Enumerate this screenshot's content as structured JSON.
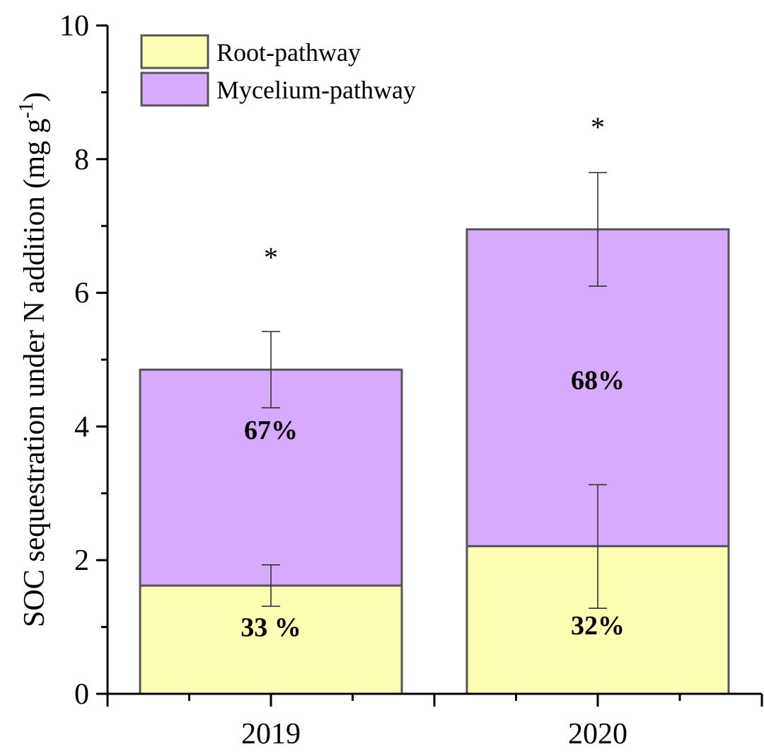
{
  "chart_data": {
    "type": "bar",
    "stacked": true,
    "title": "",
    "xlabel": "",
    "ylabel": {
      "main": "SOC sequestration under N addition (mg g",
      "sup": "-1",
      "close": ")"
    },
    "ylim": [
      0,
      10
    ],
    "yticks": [
      0,
      2,
      4,
      6,
      8,
      10
    ],
    "yticks_minor": [
      1,
      3,
      5,
      7,
      9
    ],
    "categories": [
      "2019",
      "2020"
    ],
    "series": [
      {
        "name": "Root-pathway",
        "color": "#FCFEB1",
        "values": [
          1.62,
          2.21
        ],
        "error_low": [
          1.31,
          1.28
        ],
        "error_high": [
          1.93,
          3.13
        ],
        "labels": [
          "33 %",
          "32%"
        ],
        "label_values": [
          1.0,
          1.03
        ]
      },
      {
        "name": "Mycelium-pathway",
        "color": "#D6AAFC",
        "values": [
          3.23,
          4.74
        ],
        "error_low": [
          4.28,
          6.1
        ],
        "error_high": [
          5.42,
          7.8
        ],
        "labels": [
          "67%",
          "68%"
        ],
        "label_values": [
          3.95,
          4.7
        ]
      }
    ],
    "significance": [
      {
        "category": "2019",
        "mark": "*",
        "value": 6.6
      },
      {
        "category": "2020",
        "mark": "*",
        "value": 8.55
      }
    ],
    "legend": {
      "position": "top-left",
      "entries": [
        "Root-pathway",
        "Mycelium-pathway"
      ]
    },
    "edge_color": "#555555"
  }
}
